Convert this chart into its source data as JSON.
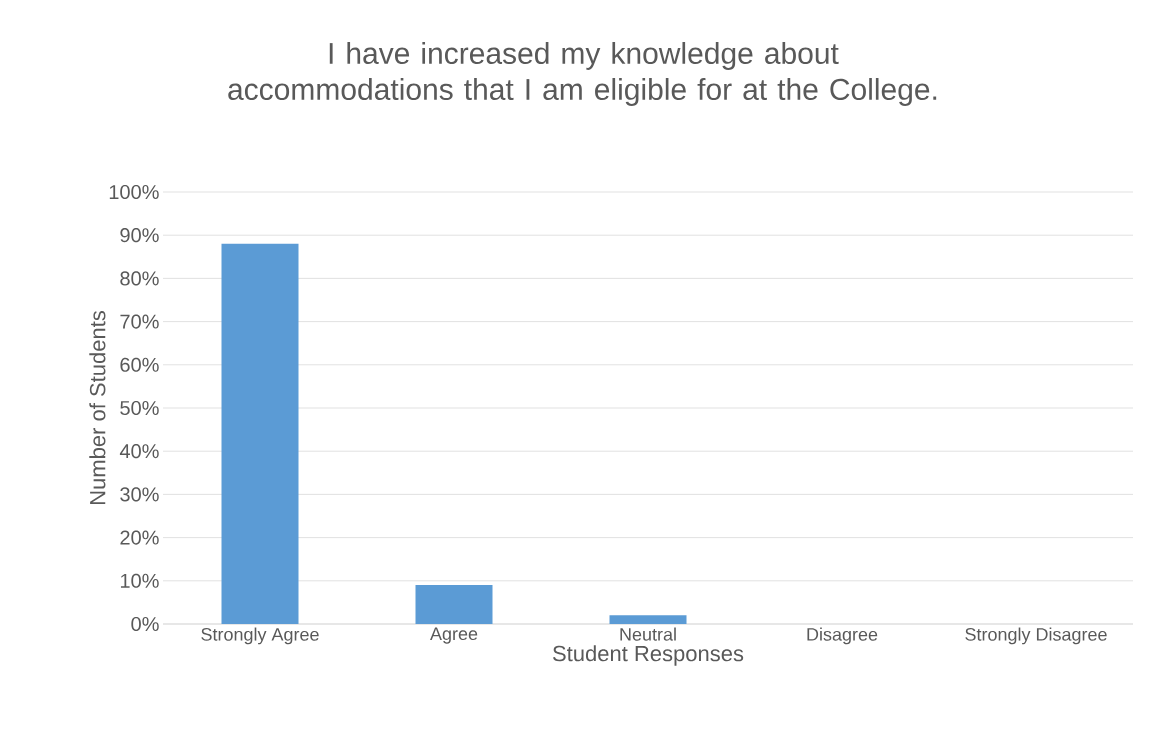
{
  "chart_data": {
    "type": "bar",
    "title": "I have increased my knowledge about accommodations that I am eligible for at the College.",
    "xlabel": "Student Responses",
    "ylabel": "Number of Students",
    "categories": [
      "Strongly Agree",
      "Agree",
      "Neutral",
      "Disagree",
      "Strongly Disagree"
    ],
    "values": [
      88,
      9,
      2,
      0,
      0
    ],
    "color": "#5b9bd5",
    "ylim": [
      0,
      100
    ],
    "yticks": [
      {
        "value": 0,
        "label": "0%"
      },
      {
        "value": 10,
        "label": "10%"
      },
      {
        "value": 20,
        "label": "20%"
      },
      {
        "value": 30,
        "label": "30%"
      },
      {
        "value": 40,
        "label": "40%"
      },
      {
        "value": 50,
        "label": "50%"
      },
      {
        "value": 60,
        "label": "60%"
      },
      {
        "value": 70,
        "label": "70%"
      },
      {
        "value": 80,
        "label": "80%"
      },
      {
        "value": 90,
        "label": "90%"
      },
      {
        "value": 100,
        "label": "100%"
      }
    ],
    "grid": "y"
  }
}
